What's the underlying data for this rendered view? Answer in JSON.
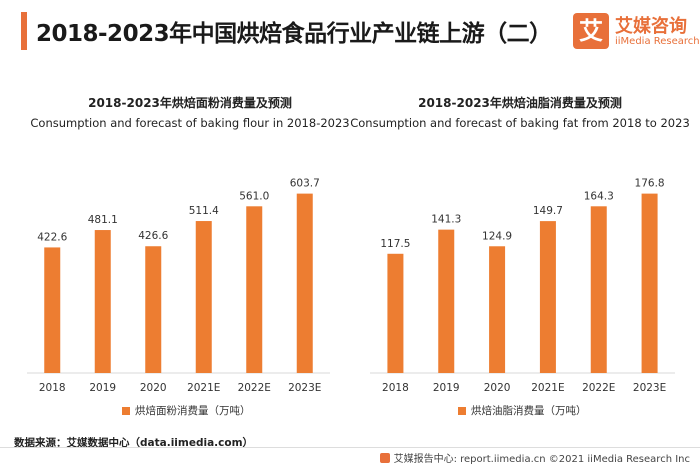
{
  "header": {
    "title": "2018-2023年中国烘焙食品行业产业链上游（二）",
    "logo_mark": "艾",
    "logo_cn": "艾媒咨询",
    "logo_en": "iiMedia Research"
  },
  "colors": {
    "accent": "#e8703a",
    "bar": "#ed7d31"
  },
  "chart_data": [
    {
      "type": "bar",
      "title": "2018-2023年烘焙面粉消费量及预测",
      "subtitle": "Consumption and forecast of baking flour in 2018-2023",
      "categories": [
        "2018",
        "2019",
        "2020",
        "2021E",
        "2022E",
        "2023E"
      ],
      "series": [
        {
          "name": "烘焙面粉消费量（万吨）",
          "values": [
            422.6,
            481.1,
            426.6,
            511.4,
            561.0,
            603.7
          ],
          "labels": [
            "422.6",
            "481.1",
            "426.6",
            "511.4",
            "561.0",
            "603.7"
          ]
        }
      ],
      "ylim": [
        0,
        700
      ],
      "grid": false,
      "legend": "bottom"
    },
    {
      "type": "bar",
      "title": "2018-2023年烘焙油脂消费量及预测",
      "subtitle": "Consumption and forecast of baking fat from 2018 to 2023",
      "categories": [
        "2018",
        "2019",
        "2020",
        "2021E",
        "2022E",
        "2023E"
      ],
      "series": [
        {
          "name": "烘焙油脂消费量（万吨）",
          "values": [
            117.5,
            141.3,
            124.9,
            149.7,
            164.3,
            176.8
          ],
          "labels": [
            "117.5",
            "141.3",
            "124.9",
            "149.7",
            "164.3",
            "176.8"
          ]
        }
      ],
      "ylim": [
        0,
        205
      ],
      "grid": false,
      "legend": "bottom"
    }
  ],
  "source": "数据来源：艾媒数据中心（data.iimedia.com）",
  "footer": "艾媒报告中心: report.iimedia.cn  ©2021  iiMedia Research  Inc"
}
